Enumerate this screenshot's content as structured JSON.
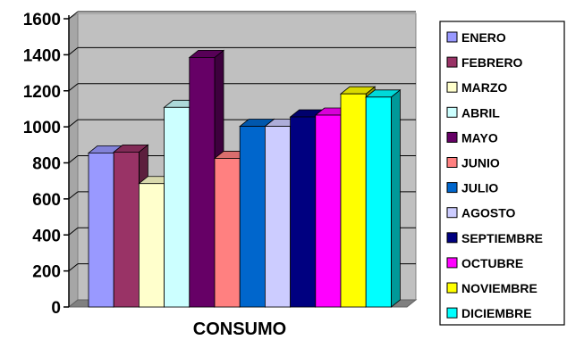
{
  "chart_data": {
    "type": "bar",
    "categories": [
      "CONSUMO"
    ],
    "series": [
      {
        "name": "ENERO",
        "values": [
          855
        ],
        "color": "#9999ff"
      },
      {
        "name": "FEBRERO",
        "values": [
          860
        ],
        "color": "#993366"
      },
      {
        "name": "MARZO",
        "values": [
          685
        ],
        "color": "#ffffcc"
      },
      {
        "name": "ABRIL",
        "values": [
          1108
        ],
        "color": "#ccffff"
      },
      {
        "name": "MAYO",
        "values": [
          1385
        ],
        "color": "#660066"
      },
      {
        "name": "JUNIO",
        "values": [
          825
        ],
        "color": "#ff8080"
      },
      {
        "name": "JULIO",
        "values": [
          1003
        ],
        "color": "#0066cc"
      },
      {
        "name": "AGOSTO",
        "values": [
          1003
        ],
        "color": "#ccccff"
      },
      {
        "name": "SEPTIEMBRE",
        "values": [
          1055
        ],
        "color": "#000080"
      },
      {
        "name": "OCTUBRE",
        "values": [
          1065
        ],
        "color": "#ff00ff"
      },
      {
        "name": "NOVIEMBRE",
        "values": [
          1183
        ],
        "color": "#ffff00"
      },
      {
        "name": "DICIEMBRE",
        "values": [
          1165
        ],
        "color": "#00ffff"
      }
    ],
    "yticks": [
      0,
      200,
      400,
      600,
      800,
      1000,
      1200,
      1400,
      1600
    ],
    "ylim": [
      0,
      1600
    ],
    "grid": true,
    "plot_background": "#c0c0c0",
    "legend_position": "right"
  }
}
